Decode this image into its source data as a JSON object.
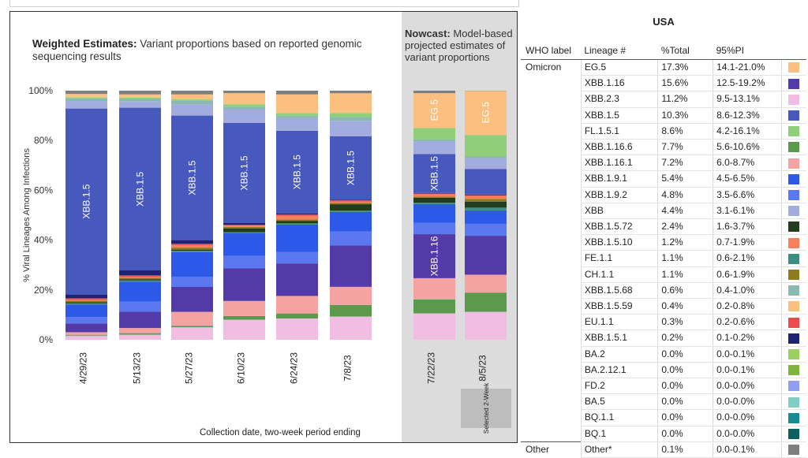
{
  "chart_data": {
    "type": "bar",
    "stacked": true,
    "title": "Weighted Estimates:",
    "subtitle": "Variant proportions based on reported genomic sequencing results",
    "nowcast_title": "Nowcast:",
    "nowcast_subtitle": "Model-based projected estimates of variant proportions",
    "xlabel": "Collection date, two-week period ending",
    "ylabel": "% Viral Lineages Among Infections",
    "ylim": [
      0,
      100
    ],
    "yticks": [
      "0%",
      "20%",
      "40%",
      "60%",
      "80%",
      "100%"
    ],
    "selected_label": "Selected 2-Week",
    "categories": [
      "4/29/23",
      "5/13/23",
      "5/27/23",
      "6/10/23",
      "6/24/23",
      "7/8/23",
      "7/22/23",
      "8/5/23"
    ],
    "series_order": [
      "XBB.2.3",
      "XBB.1.16.6",
      "BA.2",
      "XBB.1.16.1",
      "XBB.1.16",
      "XBB.1.9.2",
      "XBB.1.9.1",
      "FE.1.1",
      "XBB.1.5.72",
      "CH.1.1",
      "XBB.1.5.10",
      "EU.1.1",
      "XBB.1.5.1",
      "XBB.1.5",
      "XBB",
      "XBB.1.5.68",
      "FL.1.5.1",
      "XBB.1.5.59",
      "EG.5",
      "Other"
    ],
    "colors": {
      "EG.5": "#fbbf7f",
      "XBB.1.16": "#523aa8",
      "XBB.2.3": "#f2bde2",
      "XBB.1.5": "#4859be",
      "FL.1.5.1": "#8fcf7a",
      "XBB.1.16.6": "#5b9a4c",
      "XBB.1.16.1": "#f4a2a2",
      "XBB.1.9.1": "#2d59e8",
      "XBB.1.9.2": "#5b78f0",
      "XBB": "#a3acdf",
      "XBB.1.5.72": "#233b1f",
      "XBB.1.5.10": "#f67f5c",
      "FE.1.1": "#3c8e82",
      "CH.1.1": "#8d7c1f",
      "XBB.1.5.68": "#8ab9b2",
      "XBB.1.5.59": "#fbbf7f",
      "EU.1.1": "#eb4b4e",
      "XBB.1.5.1": "#1d2275",
      "Other": "#7f7f7f"
    },
    "series": [
      {
        "name": "XBB.2.3",
        "values": [
          1.5,
          2,
          5,
          8,
          8.5,
          9,
          10.5,
          11.2
        ]
      },
      {
        "name": "XBB.1.16.6",
        "values": [
          0.3,
          0.5,
          0.5,
          1.5,
          2,
          4.5,
          5.5,
          7.7
        ]
      },
      {
        "name": "BA.2",
        "values": [
          0.2,
          0.2,
          0.2,
          0,
          0,
          0,
          0,
          0
        ]
      },
      {
        "name": "XBB.1.16.1",
        "values": [
          1,
          2,
          5.5,
          6,
          7,
          7,
          8.5,
          7.2
        ]
      },
      {
        "name": "XBB.1.16",
        "values": [
          3.5,
          6.5,
          10,
          13,
          13,
          16,
          17.5,
          15.6
        ]
      },
      {
        "name": "XBB.1.9.2",
        "values": [
          2.5,
          4,
          4,
          5,
          4.5,
          5.5,
          4.5,
          4.8
        ]
      },
      {
        "name": "XBB.1.9.1",
        "values": [
          5,
          8,
          10,
          9,
          11,
          7.5,
          7.5,
          5.4
        ]
      },
      {
        "name": "FE.1.1",
        "values": [
          0.5,
          0.5,
          0.5,
          0.5,
          0.5,
          0.5,
          0.5,
          1.1
        ]
      },
      {
        "name": "XBB.1.5.72",
        "values": [
          0.5,
          0.5,
          0.5,
          1.5,
          1,
          2.5,
          2,
          2.4
        ]
      },
      {
        "name": "CH.1.1",
        "values": [
          0.5,
          0.5,
          0.8,
          0.6,
          0.5,
          0.5,
          0.4,
          1.1
        ]
      },
      {
        "name": "XBB.1.5.10",
        "values": [
          0.5,
          0.5,
          1,
          0.5,
          1.5,
          0.5,
          1,
          1.2
        ]
      },
      {
        "name": "EU.1.1",
        "values": [
          0.5,
          0.5,
          0.5,
          0.3,
          0.5,
          0.5,
          0.3,
          0.3
        ]
      },
      {
        "name": "XBB.1.5.1",
        "values": [
          1.5,
          2,
          1.5,
          0.7,
          0.5,
          0.3,
          0.2,
          0.2
        ]
      },
      {
        "name": "XBB.1.5",
        "values": [
          74,
          65,
          50,
          40,
          33,
          24.5,
          15.5,
          10.3
        ]
      },
      {
        "name": "XBB",
        "values": [
          3,
          2.5,
          4.5,
          5.5,
          5,
          6,
          5,
          4.4
        ]
      },
      {
        "name": "XBB.1.5.68",
        "values": [
          1,
          1,
          1.5,
          1,
          1,
          1.5,
          0.8,
          0.6
        ]
      },
      {
        "name": "FL.1.5.1",
        "values": [
          0.5,
          0.5,
          0.5,
          1,
          1,
          1.5,
          4.5,
          8.6
        ]
      },
      {
        "name": "XBB.1.5.59",
        "values": [
          0.5,
          0.5,
          0.5,
          0.7,
          1,
          0.5,
          0.4,
          0.4
        ]
      },
      {
        "name": "EG.5",
        "values": [
          0.8,
          0.8,
          1.5,
          3.7,
          6.5,
          7.2,
          13.5,
          17.3
        ]
      },
      {
        "name": "Other",
        "values": [
          1.3,
          1.5,
          1.5,
          1,
          1.5,
          1,
          1,
          0.1
        ]
      }
    ],
    "bar_labels": [
      {
        "category": "4/29/23",
        "series": "XBB.1.5",
        "text": "XBB.1.5"
      },
      {
        "category": "5/13/23",
        "series": "XBB.1.5",
        "text": "XBB.1.5"
      },
      {
        "category": "5/27/23",
        "series": "XBB.1.5",
        "text": "XBB.1.5"
      },
      {
        "category": "6/10/23",
        "series": "XBB.1.5",
        "text": "XBB.1.5"
      },
      {
        "category": "6/24/23",
        "series": "XBB.1.5",
        "text": "XBB.1.5"
      },
      {
        "category": "7/8/23",
        "series": "XBB.1.5",
        "text": "XBB.1.5"
      },
      {
        "category": "7/22/23",
        "series": "EG.5",
        "text": "EG.5"
      },
      {
        "category": "7/22/23",
        "series": "XBB.1.5",
        "text": "XBB.1.5"
      },
      {
        "category": "7/22/23",
        "series": "XBB.1.16",
        "text": "XBB.1.16"
      },
      {
        "category": "8/5/23",
        "series": "EG.5",
        "text": "EG.5"
      }
    ]
  },
  "legend": {
    "title": "USA",
    "headers": {
      "who": "WHO label",
      "lineage": "Lineage #",
      "total": "%Total",
      "pi": "95%PI"
    },
    "rows": [
      {
        "who": "Omicron",
        "lineage": "EG.5",
        "total": "17.3%",
        "pi": "14.1-21.0%",
        "color": "#fbbf7f"
      },
      {
        "who": "",
        "lineage": "XBB.1.16",
        "total": "15.6%",
        "pi": "12.5-19.2%",
        "color": "#523aa8"
      },
      {
        "who": "",
        "lineage": "XBB.2.3",
        "total": "11.2%",
        "pi": "9.5-13.1%",
        "color": "#f2bde2"
      },
      {
        "who": "",
        "lineage": "XBB.1.5",
        "total": "10.3%",
        "pi": "8.6-12.3%",
        "color": "#4859be"
      },
      {
        "who": "",
        "lineage": "FL.1.5.1",
        "total": "8.6%",
        "pi": "4.2-16.1%",
        "color": "#8fcf7a"
      },
      {
        "who": "",
        "lineage": "XBB.1.16.6",
        "total": "7.7%",
        "pi": "5.6-10.6%",
        "color": "#5b9a4c"
      },
      {
        "who": "",
        "lineage": "XBB.1.16.1",
        "total": "7.2%",
        "pi": "6.0-8.7%",
        "color": "#f4a2a2"
      },
      {
        "who": "",
        "lineage": "XBB.1.9.1",
        "total": "5.4%",
        "pi": "4.5-6.5%",
        "color": "#2d59e8"
      },
      {
        "who": "",
        "lineage": "XBB.1.9.2",
        "total": "4.8%",
        "pi": "3.5-6.6%",
        "color": "#5b78f0"
      },
      {
        "who": "",
        "lineage": "XBB",
        "total": "4.4%",
        "pi": "3.1-6.1%",
        "color": "#a3acdf"
      },
      {
        "who": "",
        "lineage": "XBB.1.5.72",
        "total": "2.4%",
        "pi": "1.6-3.7%",
        "color": "#233b1f"
      },
      {
        "who": "",
        "lineage": "XBB.1.5.10",
        "total": "1.2%",
        "pi": "0.7-1.9%",
        "color": "#f67f5c"
      },
      {
        "who": "",
        "lineage": "FE.1.1",
        "total": "1.1%",
        "pi": "0.6-2.1%",
        "color": "#3c8e82"
      },
      {
        "who": "",
        "lineage": "CH.1.1",
        "total": "1.1%",
        "pi": "0.6-1.9%",
        "color": "#8d7c1f"
      },
      {
        "who": "",
        "lineage": "XBB.1.5.68",
        "total": "0.6%",
        "pi": "0.4-1.0%",
        "color": "#8ab9b2"
      },
      {
        "who": "",
        "lineage": "XBB.1.5.59",
        "total": "0.4%",
        "pi": "0.2-0.8%",
        "color": "#fbbf7f"
      },
      {
        "who": "",
        "lineage": "EU.1.1",
        "total": "0.3%",
        "pi": "0.2-0.6%",
        "color": "#eb4b4e"
      },
      {
        "who": "",
        "lineage": "XBB.1.5.1",
        "total": "0.2%",
        "pi": "0.1-0.2%",
        "color": "#1d2275"
      },
      {
        "who": "",
        "lineage": "BA.2",
        "total": "0.0%",
        "pi": "0.0-0.1%",
        "color": "#9bd061"
      },
      {
        "who": "",
        "lineage": "BA.2.12.1",
        "total": "0.0%",
        "pi": "0.0-0.1%",
        "color": "#80b53c"
      },
      {
        "who": "",
        "lineage": "FD.2",
        "total": "0.0%",
        "pi": "0.0-0.0%",
        "color": "#8f9ef0"
      },
      {
        "who": "",
        "lineage": "BA.5",
        "total": "0.0%",
        "pi": "0.0-0.0%",
        "color": "#80cdc4"
      },
      {
        "who": "",
        "lineage": "BQ.1.1",
        "total": "0.0%",
        "pi": "0.0-0.0%",
        "color": "#1a8a92"
      },
      {
        "who": "",
        "lineage": "BQ.1",
        "total": "0.0%",
        "pi": "0.0-0.0%",
        "color": "#0e5f60"
      }
    ],
    "other_row": {
      "who": "Other",
      "lineage": "Other*",
      "total": "0.1%",
      "pi": "0.0-0.1%",
      "color": "#7f7f7f"
    }
  }
}
